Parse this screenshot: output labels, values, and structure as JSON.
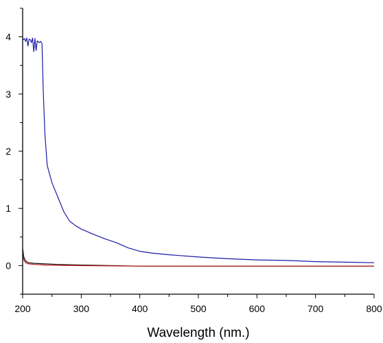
{
  "chart_data": {
    "type": "line",
    "title": "",
    "xlabel": "Wavelength (nm.)",
    "ylabel": "",
    "xlim": [
      200,
      800
    ],
    "ylim": [
      -0.5,
      4.5
    ],
    "xticks": [
      200,
      300,
      400,
      500,
      600,
      700,
      800
    ],
    "yticks": [
      0,
      1,
      2,
      3,
      4
    ],
    "grid": false,
    "legend": "none",
    "series": [
      {
        "color": "#1a1aa6",
        "points": [
          [
            200,
            3.94
          ],
          [
            203,
            3.97
          ],
          [
            205,
            3.92
          ],
          [
            207,
            3.98
          ],
          [
            209,
            3.84
          ],
          [
            211,
            3.96
          ],
          [
            213,
            3.95
          ],
          [
            215,
            3.9
          ],
          [
            217,
            3.98
          ],
          [
            219,
            3.74
          ],
          [
            221,
            3.97
          ],
          [
            223,
            3.76
          ],
          [
            225,
            3.93
          ],
          [
            228,
            3.9
          ],
          [
            231,
            3.92
          ],
          [
            233,
            3.88
          ],
          [
            235,
            3.1
          ],
          [
            238,
            2.3
          ],
          [
            242,
            1.75
          ],
          [
            250,
            1.45
          ],
          [
            260,
            1.2
          ],
          [
            270,
            0.95
          ],
          [
            280,
            0.78
          ],
          [
            290,
            0.7
          ],
          [
            300,
            0.64
          ],
          [
            320,
            0.55
          ],
          [
            340,
            0.47
          ],
          [
            360,
            0.4
          ],
          [
            380,
            0.31
          ],
          [
            400,
            0.25
          ],
          [
            420,
            0.22
          ],
          [
            450,
            0.19
          ],
          [
            500,
            0.15
          ],
          [
            550,
            0.12
          ],
          [
            600,
            0.1
          ],
          [
            650,
            0.09
          ],
          [
            700,
            0.07
          ],
          [
            750,
            0.06
          ],
          [
            800,
            0.05
          ]
        ]
      },
      {
        "color": "#111111",
        "points": [
          [
            200,
            0.3
          ],
          [
            202,
            0.15
          ],
          [
            205,
            0.08
          ],
          [
            210,
            0.05
          ],
          [
            220,
            0.04
          ],
          [
            240,
            0.03
          ],
          [
            260,
            0.02
          ],
          [
            300,
            0.01
          ],
          [
            350,
            0.0
          ],
          [
            400,
            -0.01
          ],
          [
            500,
            -0.01
          ],
          [
            600,
            -0.01
          ],
          [
            700,
            -0.01
          ],
          [
            800,
            -0.01
          ]
        ]
      },
      {
        "color": "#c0141a",
        "points": [
          [
            200,
            0.25
          ],
          [
            202,
            0.1
          ],
          [
            205,
            0.05
          ],
          [
            210,
            0.03
          ],
          [
            220,
            0.02
          ],
          [
            240,
            0.01
          ],
          [
            260,
            0.005
          ],
          [
            300,
            0.0
          ],
          [
            350,
            -0.005
          ],
          [
            400,
            -0.01
          ],
          [
            500,
            -0.01
          ],
          [
            600,
            -0.01
          ],
          [
            700,
            -0.01
          ],
          [
            800,
            -0.01
          ]
        ]
      }
    ]
  }
}
